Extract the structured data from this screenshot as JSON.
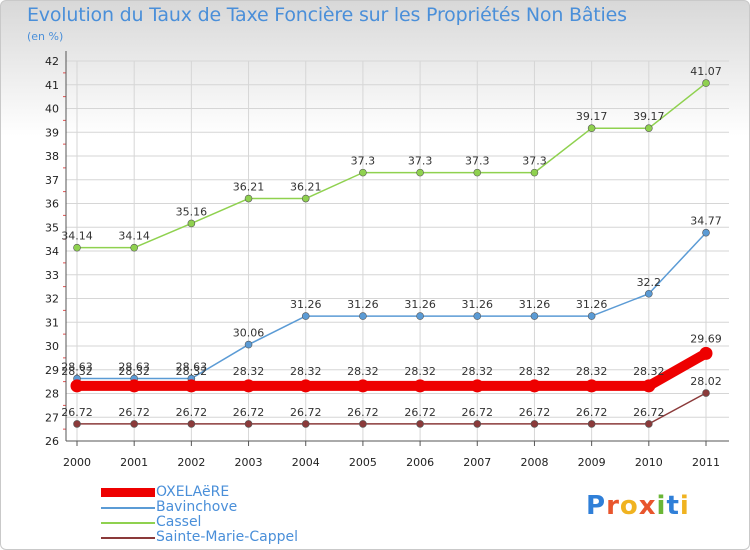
{
  "title": "Evolution du Taux de Taxe Foncière sur les Propriétés Non Bâties",
  "subtitle": "(en %)",
  "logo": {
    "letters": [
      "P",
      "r",
      "o",
      "x",
      "i",
      "t",
      "i"
    ],
    "colors": [
      "#2f7fd8",
      "#e8552d",
      "#f0b320",
      "#e8552d",
      "#6ab636",
      "#2f7fd8",
      "#f0b320"
    ]
  },
  "chart_data": {
    "type": "line",
    "title": "Evolution du Taux de Taxe Foncière sur les Propriétés Non Bâties",
    "subtitle": "(en %)",
    "xlabel": "",
    "ylabel": "",
    "categories": [
      "2000",
      "2001",
      "2002",
      "2003",
      "2004",
      "2005",
      "2006",
      "2007",
      "2008",
      "2009",
      "2010",
      "2011"
    ],
    "ylim": [
      26,
      42
    ],
    "yticks": [
      26,
      27,
      28,
      29,
      30,
      31,
      32,
      33,
      34,
      35,
      36,
      37,
      38,
      39,
      40,
      41,
      42
    ],
    "grid": true,
    "legend_position": "bottom-left",
    "series": [
      {
        "name": "OXELAëRE",
        "color": "#ee0000",
        "values": [
          28.32,
          28.32,
          28.32,
          28.32,
          28.32,
          28.32,
          28.32,
          28.32,
          28.32,
          28.32,
          28.32,
          29.69
        ],
        "labels": [
          "28.32",
          "28.32",
          "28.32",
          "28.32",
          "28.32",
          "28.32",
          "28.32",
          "28.32",
          "28.32",
          "28.32",
          "28.32",
          "29.69"
        ]
      },
      {
        "name": "Bavinchove",
        "color": "#5b9bd5",
        "values": [
          28.63,
          28.63,
          28.63,
          30.06,
          31.26,
          31.26,
          31.26,
          31.26,
          31.26,
          31.26,
          32.2,
          34.77
        ],
        "labels": [
          "28.63",
          "28.63",
          "28.63",
          "30.06",
          "31.26",
          "31.26",
          "31.26",
          "31.26",
          "31.26",
          "31.26",
          "32.2",
          "34.77"
        ]
      },
      {
        "name": "Cassel",
        "color": "#8fd14f",
        "values": [
          34.14,
          34.14,
          35.16,
          36.21,
          36.21,
          37.3,
          37.3,
          37.3,
          37.3,
          39.17,
          39.17,
          41.07
        ],
        "labels": [
          "34.14",
          "34.14",
          "35.16",
          "36.21",
          "36.21",
          "37.3",
          "37.3",
          "37.3",
          "37.3",
          "39.17",
          "39.17",
          "41.07"
        ]
      },
      {
        "name": "Sainte-Marie-Cappel",
        "color": "#8b3a3a",
        "values": [
          26.72,
          26.72,
          26.72,
          26.72,
          26.72,
          26.72,
          26.72,
          26.72,
          26.72,
          26.72,
          26.72,
          28.02
        ],
        "labels": [
          "26.72",
          "26.72",
          "26.72",
          "26.72",
          "26.72",
          "26.72",
          "26.72",
          "26.72",
          "26.72",
          "26.72",
          "26.72",
          "28.02"
        ]
      }
    ]
  }
}
